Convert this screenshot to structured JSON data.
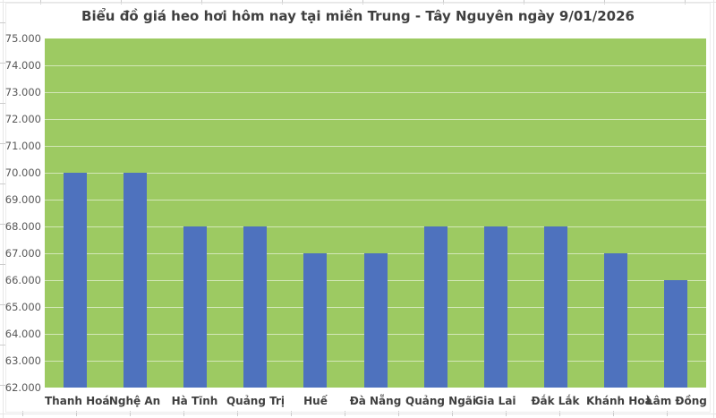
{
  "chart_data": {
    "type": "bar",
    "title": "Biểu đồ giá heo hơi hôm nay tại miền Trung - Tây Nguyên ngày 9/01/2026",
    "categories": [
      "Thanh Hoá",
      "Nghệ An",
      "Hà Tĩnh",
      "Quảng Trị",
      "Huế",
      "Đà Nẵng",
      "Quảng Ngãi",
      "Gia Lai",
      "Đắk Lắk",
      "Khánh Hoà",
      "Lâm Đồng"
    ],
    "values": [
      70000,
      70000,
      68000,
      68000,
      67000,
      67000,
      68000,
      68000,
      68000,
      67000,
      66000
    ],
    "y_tick_labels": [
      "75.000",
      "74.000",
      "73.000",
      "72.000",
      "71.000",
      "70.000",
      "69.000",
      "68.000",
      "67.000",
      "66.000",
      "65.000",
      "64.000",
      "63.000",
      "62.000"
    ],
    "ylim": [
      62000,
      75000
    ],
    "y_step": 1000,
    "xlabel": "",
    "ylabel": "",
    "grid": true,
    "legend": "none",
    "colors": {
      "bar": "#4E72BE",
      "plot_background": "#9DCA62",
      "gridline": "rgba(255,255,255,0.55)",
      "title_text": "#3F3F3F",
      "axis_text": "#595959",
      "category_text": "#404040"
    }
  }
}
